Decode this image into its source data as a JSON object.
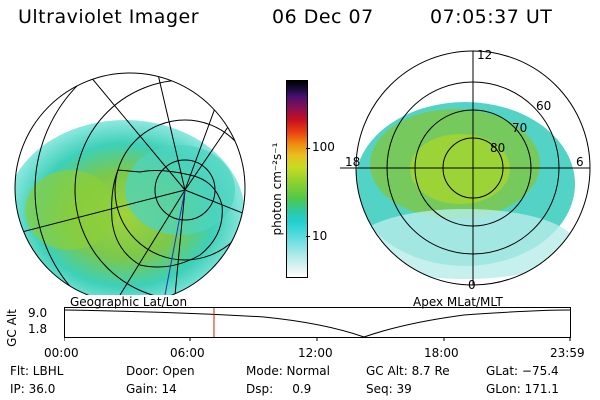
{
  "header": {
    "title": "Ultraviolet Imager",
    "date": "06 Dec 07",
    "time": "07:05:37 UT"
  },
  "left_panel": {
    "label": "Geographic Lat/Lon"
  },
  "right_panel": {
    "label": "Apex MLat/MLT",
    "mlt_labels": [
      "12",
      "18",
      "6",
      "0"
    ],
    "lat_labels": [
      "60",
      "70",
      "80"
    ]
  },
  "colorbar": {
    "unit_label": "photon cm⁻²s⁻¹",
    "ticks": [
      "100",
      "10"
    ]
  },
  "altitude_plot": {
    "ylabel": "GC Alt",
    "yticks": [
      "9.0",
      "1.8"
    ],
    "xticks": [
      "00:00",
      "06:00",
      "12:00",
      "18:00",
      "23:59"
    ],
    "marker_time_fraction": 0.295
  },
  "info": {
    "row1": [
      "Flt: LBHL",
      "Door: Open",
      "Mode: Normal",
      "GC Alt: 8.7 Re",
      "GLat: −75.4"
    ],
    "row2": [
      "IP: 36.0",
      "Gain: 14",
      "Dsp:     0.9",
      "Seq: 39",
      "GLon: 171.1"
    ]
  },
  "colors": {
    "marker": "#cc2200"
  }
}
